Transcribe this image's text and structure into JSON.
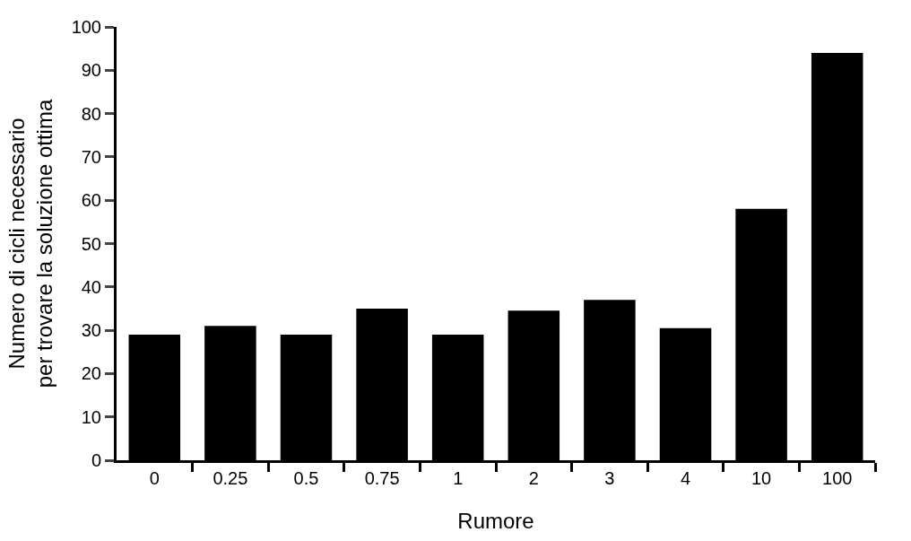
{
  "chart_data": {
    "type": "bar",
    "xlabel": "Rumore",
    "ylabel": "Numero di cicli necessario\nper trovare la soluzione ottima",
    "categories": [
      "0",
      "0.25",
      "0.5",
      "0.75",
      "1",
      "2",
      "3",
      "4",
      "10",
      "100"
    ],
    "values": [
      29,
      31,
      29,
      35,
      29,
      34.5,
      37,
      30.5,
      58,
      94
    ],
    "color": "#000000",
    "ylim": [
      0,
      100
    ],
    "yticks": [
      0,
      10,
      20,
      30,
      40,
      50,
      60,
      70,
      80,
      90,
      100
    ]
  }
}
